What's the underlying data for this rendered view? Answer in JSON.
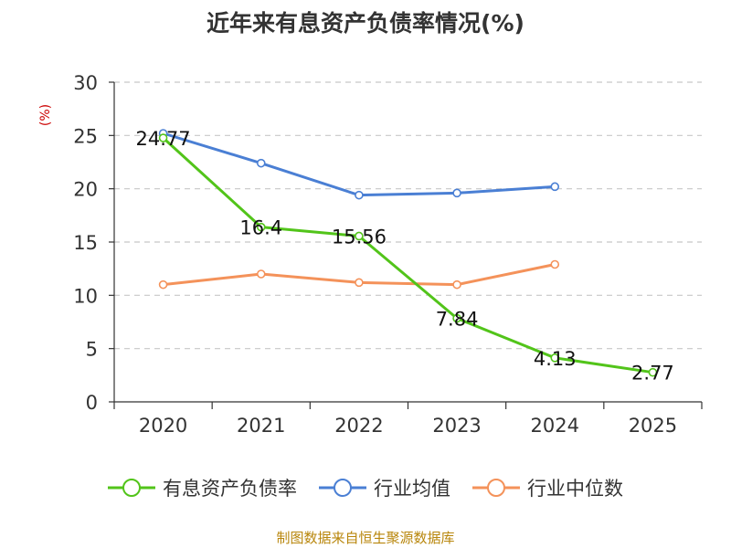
{
  "chart_data": {
    "type": "line",
    "title": "近年来有息资产负债率情况(%)",
    "ylabel": "(%)",
    "xlabel": "",
    "ylim": [
      0,
      30
    ],
    "yticks": [
      0,
      5,
      10,
      15,
      20,
      25,
      30
    ],
    "categories": [
      "2020",
      "2021",
      "2022",
      "2023",
      "2024",
      "2025"
    ],
    "grid": "horizontal-dashed",
    "legend_position": "bottom",
    "series": [
      {
        "name": "有息资产负债率",
        "color": "#52c41a",
        "values": [
          24.77,
          16.4,
          15.56,
          7.84,
          4.13,
          2.77
        ],
        "labels": [
          "24.77",
          "16.4",
          "15.56",
          "7.84",
          "4.13",
          "2.77"
        ]
      },
      {
        "name": "行业均值",
        "color": "#4a7fd4",
        "values": [
          25.2,
          22.4,
          19.4,
          19.6,
          20.2,
          null
        ]
      },
      {
        "name": "行业中位数",
        "color": "#f4925a",
        "values": [
          11.0,
          12.0,
          11.2,
          11.0,
          12.9,
          null
        ]
      }
    ]
  },
  "footer": {
    "source": "制图数据来自恒生聚源数据库"
  }
}
